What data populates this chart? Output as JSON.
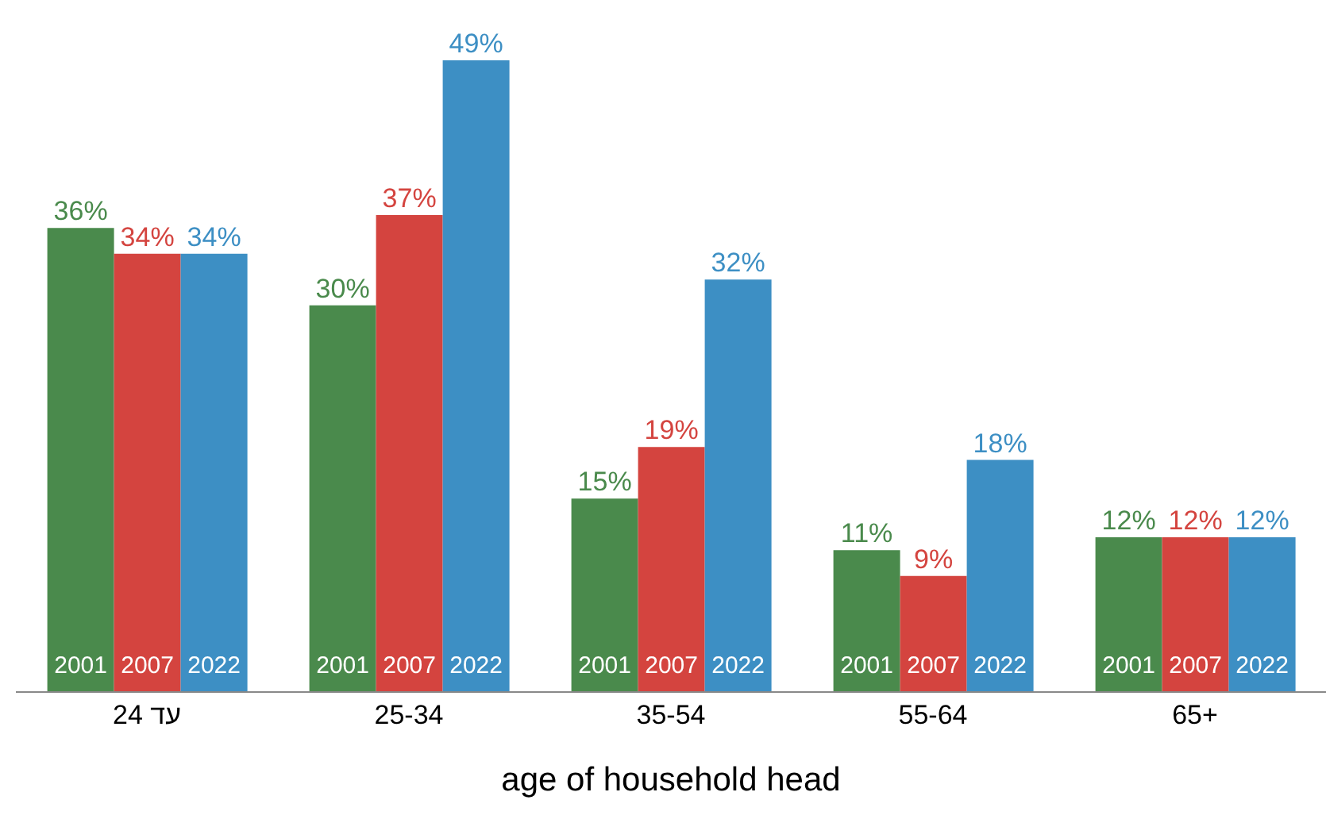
{
  "chart_data": {
    "type": "bar",
    "xlabel": "age of household head",
    "categories": [
      "עד 24",
      "25-34",
      "35-54",
      "55-64",
      "65+"
    ],
    "series": [
      {
        "name": "2001",
        "color": "#4a8a4c",
        "values": [
          36,
          30,
          15,
          11,
          12
        ],
        "value_labels": [
          "36%",
          "30%",
          "15%",
          "11%",
          "12%"
        ]
      },
      {
        "name": "2007",
        "color": "#d4443f",
        "values": [
          34,
          37,
          19,
          9,
          12
        ],
        "value_labels": [
          "34%",
          "37%",
          "19%",
          "9%",
          "12%"
        ]
      },
      {
        "name": "2022",
        "color": "#3d8fc4",
        "values": [
          34,
          49,
          32,
          18,
          12
        ],
        "value_labels": [
          "34%",
          "49%",
          "32%",
          "18%",
          "12%"
        ]
      }
    ],
    "legend": false,
    "grid": false
  }
}
